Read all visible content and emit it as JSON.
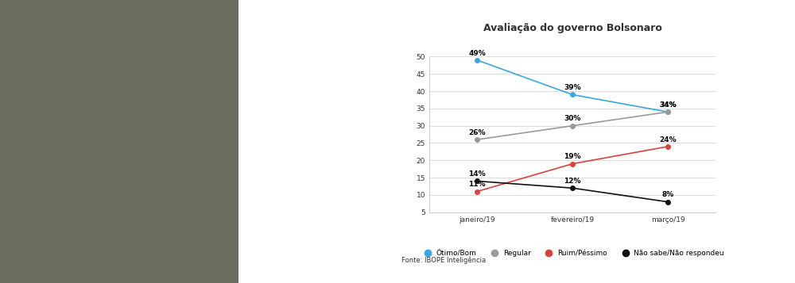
{
  "chart_data": {
    "type": "line",
    "title": "Avaliação do governo Bolsonaro",
    "categories": [
      "janeiro/19",
      "fevereiro/19",
      "março/19"
    ],
    "series": [
      {
        "name": "Ótimo/Bom",
        "color": "#3aa8e0",
        "marker": "circle",
        "values": [
          49,
          39,
          34
        ],
        "value_labels": [
          "49%",
          "39%",
          "34%"
        ]
      },
      {
        "name": "Regular",
        "color": "#9a9a9a",
        "marker": "circle",
        "values": [
          26,
          30,
          34
        ],
        "value_labels": [
          "26%",
          "30%",
          "34%"
        ]
      },
      {
        "name": "Ruim/Péssimo",
        "color": "#e0403c",
        "marker": "circle",
        "values": [
          11,
          19,
          24
        ],
        "value_labels": [
          "11%",
          "19%",
          "24%"
        ]
      },
      {
        "name": "Não sabe/Não respondeu",
        "color": "#111111",
        "marker": "circle",
        "values": [
          14,
          12,
          8
        ],
        "value_labels": [
          "14%",
          "12%",
          "8%"
        ]
      }
    ],
    "ylim": [
      5,
      50
    ],
    "yticks": [
      5,
      10,
      15,
      20,
      25,
      30,
      35,
      40,
      45,
      50
    ],
    "grid": true,
    "data_labels": true,
    "legend": "lower center",
    "source": "Fonte: IBOPE Inteligência"
  }
}
